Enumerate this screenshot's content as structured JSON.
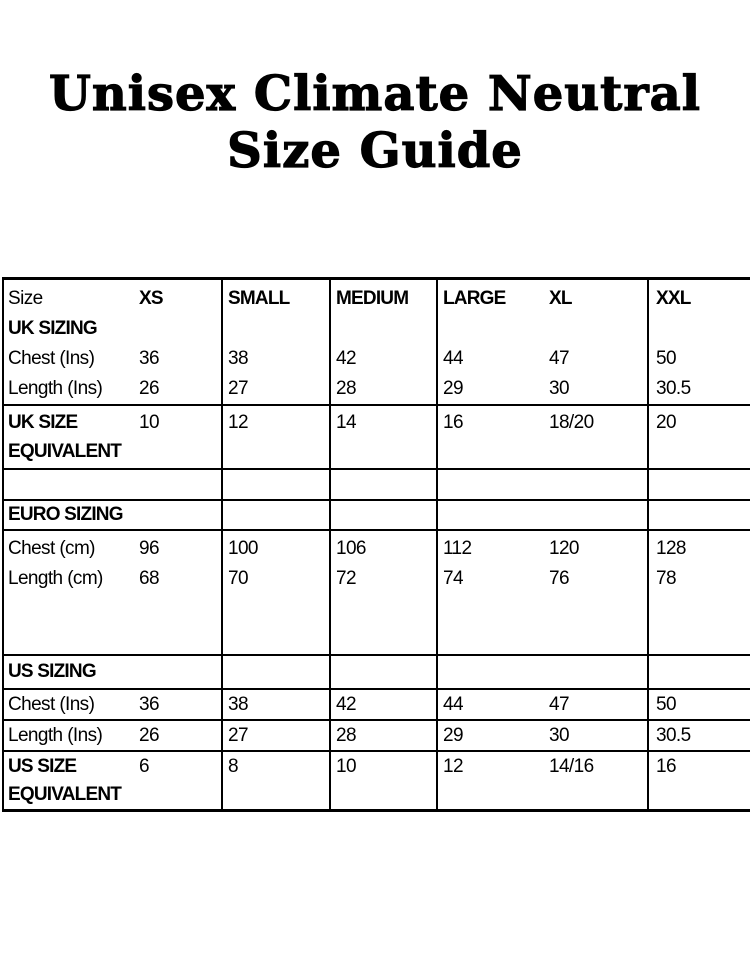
{
  "title": {
    "line1": "Unisex Climate Neutral",
    "line2": "Size Guide"
  },
  "table": {
    "header": {
      "size_label": "Size",
      "xs": "XS",
      "small": "SMALL",
      "medium": "MEDIUM",
      "large": "LARGE",
      "xl": "XL",
      "xxl": "XXL"
    },
    "uk": {
      "section": "UK SIZING",
      "chest": {
        "label": "Chest (Ins)",
        "values": [
          "36",
          "38",
          "42",
          "44",
          "47",
          "50"
        ]
      },
      "length": {
        "label": "Length (Ins)",
        "values": [
          "26",
          "27",
          "28",
          "29",
          "30",
          "30.5"
        ]
      },
      "equivalent": {
        "line1": "UK SIZE",
        "line2": "EQUIVALENT",
        "values": [
          "10",
          "12",
          "14",
          "16",
          "18/20",
          "20"
        ]
      }
    },
    "euro": {
      "section": "EURO SIZING",
      "chest": {
        "label": "Chest (cm)",
        "values": [
          "96",
          "100",
          "106",
          "112",
          "120",
          "128"
        ]
      },
      "length": {
        "label": "Length (cm)",
        "values": [
          "68",
          "70",
          "72",
          "74",
          "76",
          "78"
        ]
      }
    },
    "us": {
      "section": "US SIZING",
      "chest": {
        "label": "Chest (Ins)",
        "values": [
          "36",
          "38",
          "42",
          "44",
          "47",
          "50"
        ]
      },
      "length": {
        "label": "Length (Ins)",
        "values": [
          "26",
          "27",
          "28",
          "29",
          "30",
          "30.5"
        ]
      },
      "equivalent": {
        "line1": "US SIZE",
        "line2": "EQUIVALENT",
        "values": [
          "6",
          "8",
          "10",
          "12",
          "14/16",
          "16"
        ]
      }
    }
  }
}
